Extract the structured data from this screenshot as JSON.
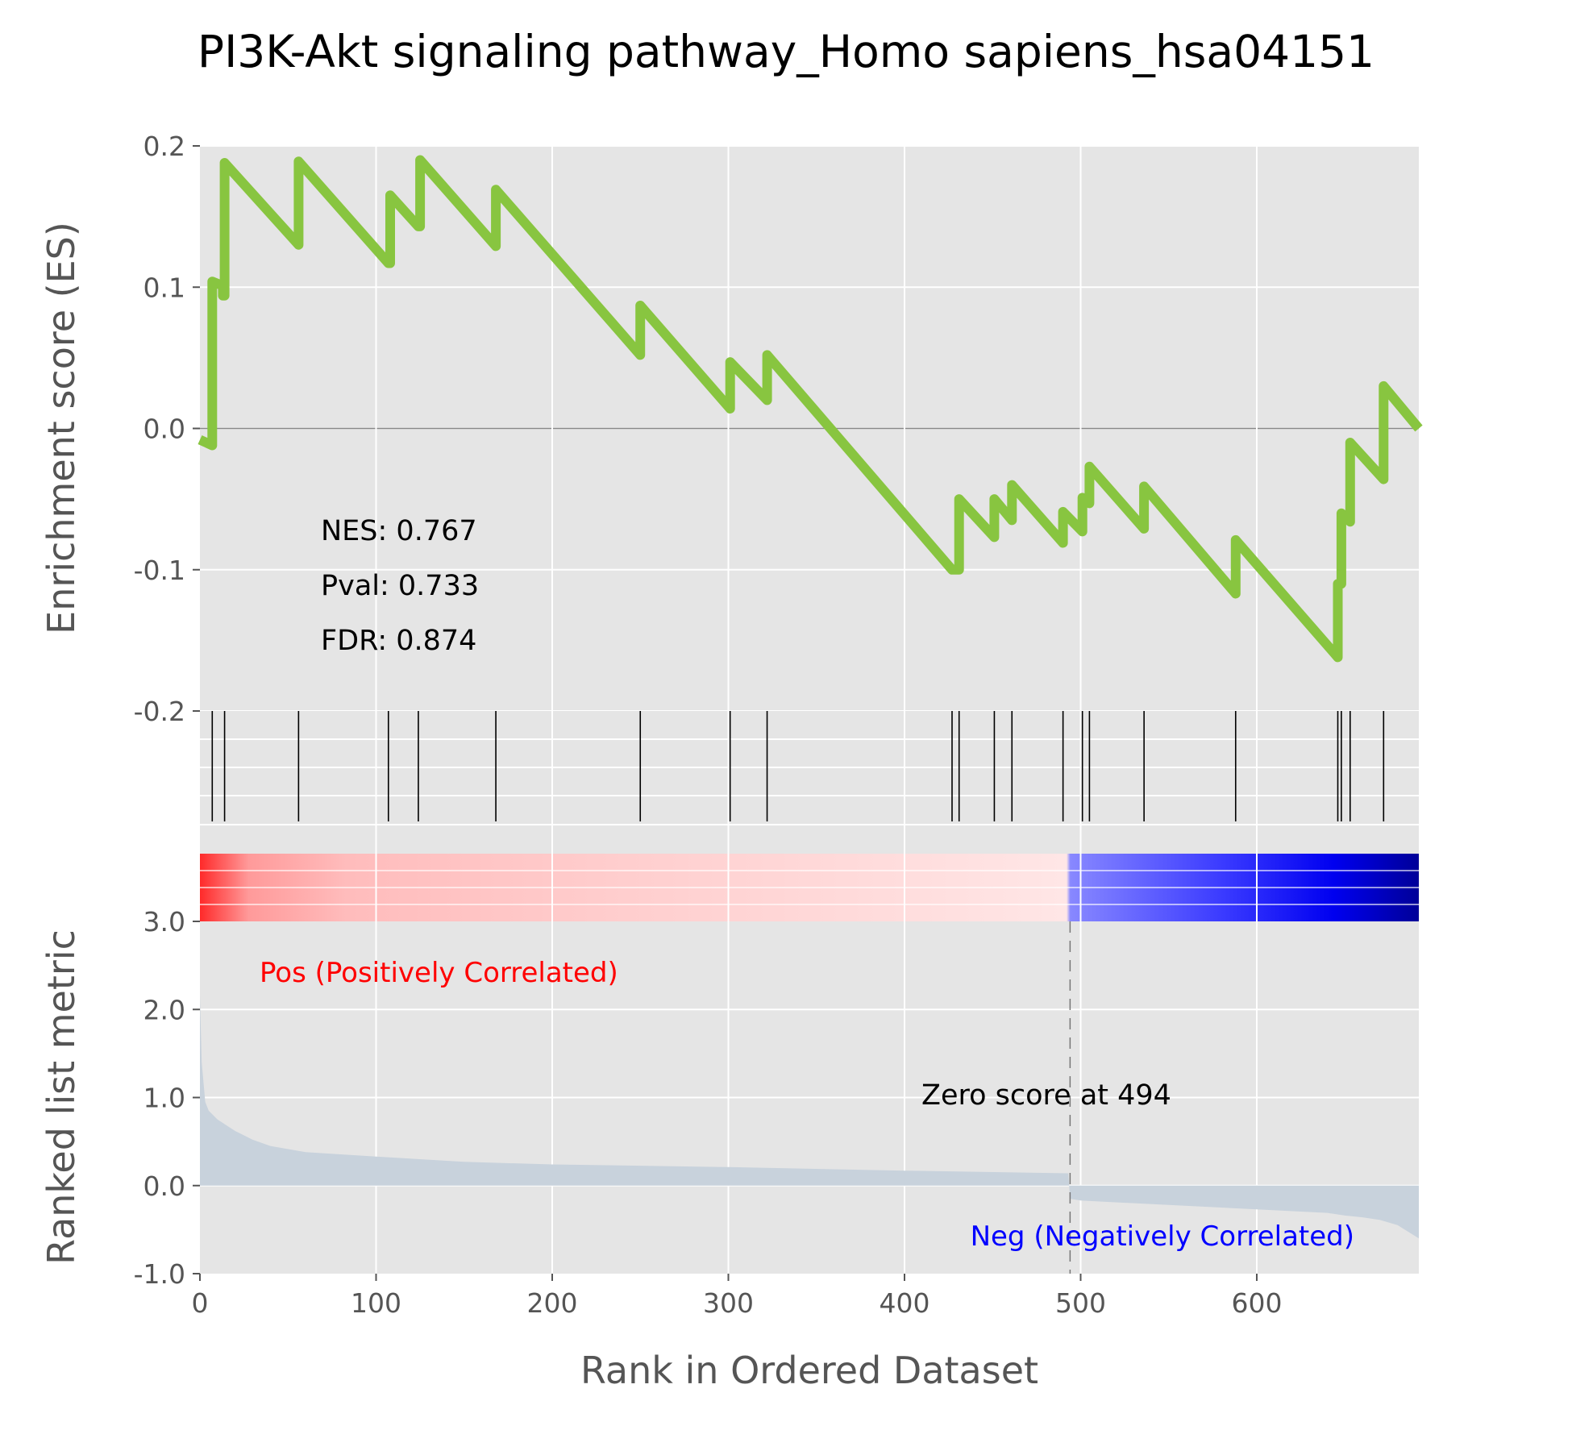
{
  "chart_data": {
    "type": "line",
    "title": "PI3K-Akt signaling pathway_Homo sapiens_hsa04151",
    "xlabel": "Rank in Ordered Dataset",
    "xlim": [
      0,
      692
    ],
    "x_ticks": [
      0,
      100,
      200,
      300,
      400,
      500,
      600
    ],
    "es_panel": {
      "ylabel": "Enrichment score (ES)",
      "ylim": [
        -0.2,
        0.2
      ],
      "y_ticks": [
        "0.2",
        "0.1",
        "0.0",
        "-0.1",
        "-0.2"
      ],
      "y_tick_values": [
        0.2,
        0.1,
        0.0,
        -0.1,
        -0.2
      ],
      "line_color": "#88c540",
      "background": "#e5e5e5",
      "series": {
        "x": [
          0,
          7,
          7,
          13,
          13,
          14,
          14,
          56,
          56,
          107,
          107,
          108,
          108,
          124,
          124,
          125,
          125,
          168,
          168,
          250,
          250,
          301,
          301,
          322,
          322,
          427,
          427,
          431,
          431,
          451,
          451,
          461,
          461,
          490,
          490,
          501,
          501,
          505,
          505,
          536,
          536,
          588,
          588,
          646,
          646,
          648,
          648,
          653,
          653,
          672,
          672,
          692
        ],
        "y": [
          -0.008,
          -0.012,
          0.104,
          0.101,
          0.094,
          0.094,
          0.188,
          0.13,
          0.189,
          0.117,
          0.117,
          0.117,
          0.165,
          0.143,
          0.143,
          0.143,
          0.19,
          0.129,
          0.169,
          0.052,
          0.087,
          0.014,
          0.047,
          0.02,
          0.052,
          -0.1,
          -0.1,
          -0.1,
          -0.05,
          -0.077,
          -0.05,
          -0.065,
          -0.04,
          -0.081,
          -0.059,
          -0.073,
          -0.049,
          -0.053,
          -0.027,
          -0.071,
          -0.041,
          -0.117,
          -0.079,
          -0.162,
          -0.11,
          -0.11,
          -0.06,
          -0.066,
          -0.01,
          -0.036,
          0.03,
          0.0
        ]
      },
      "annotations": [
        "NES: 0.767",
        "Pval: 0.733",
        "FDR: 0.874"
      ]
    },
    "hits": [
      7,
      14,
      56,
      107,
      124,
      168,
      250,
      301,
      322,
      427,
      431,
      451,
      461,
      490,
      501,
      505,
      536,
      588,
      646,
      648,
      653,
      672
    ],
    "rank_panel": {
      "ylabel": "Ranked list metric",
      "ylim": [
        -1.0,
        3.0
      ],
      "y_ticks": [
        "3.0",
        "2.0",
        "1.0",
        "0.0",
        "-1.0"
      ],
      "y_tick_values": [
        3.0,
        2.0,
        1.0,
        0.0,
        -1.0
      ],
      "fill_color": "#c8d2dc",
      "zero_cross": 494,
      "zero_cross_label": "Zero score at 494",
      "pos_label": "Pos (Positively Correlated)",
      "neg_label": "Neg (Negatively Correlated)",
      "pos_color": "#ff0000",
      "neg_color": "#0000ff",
      "metric": {
        "x": [
          0,
          1,
          3,
          5,
          10,
          20,
          30,
          40,
          60,
          100,
          150,
          200,
          300,
          400,
          493,
          494,
          500,
          550,
          600,
          640,
          650,
          660,
          670,
          680,
          692
        ],
        "y": [
          2.15,
          1.4,
          0.95,
          0.85,
          0.75,
          0.62,
          0.52,
          0.45,
          0.38,
          0.33,
          0.27,
          0.24,
          0.21,
          0.17,
          0.14,
          -0.15,
          -0.17,
          -0.22,
          -0.27,
          -0.31,
          -0.34,
          -0.36,
          -0.39,
          -0.45,
          -0.6
        ]
      }
    }
  }
}
